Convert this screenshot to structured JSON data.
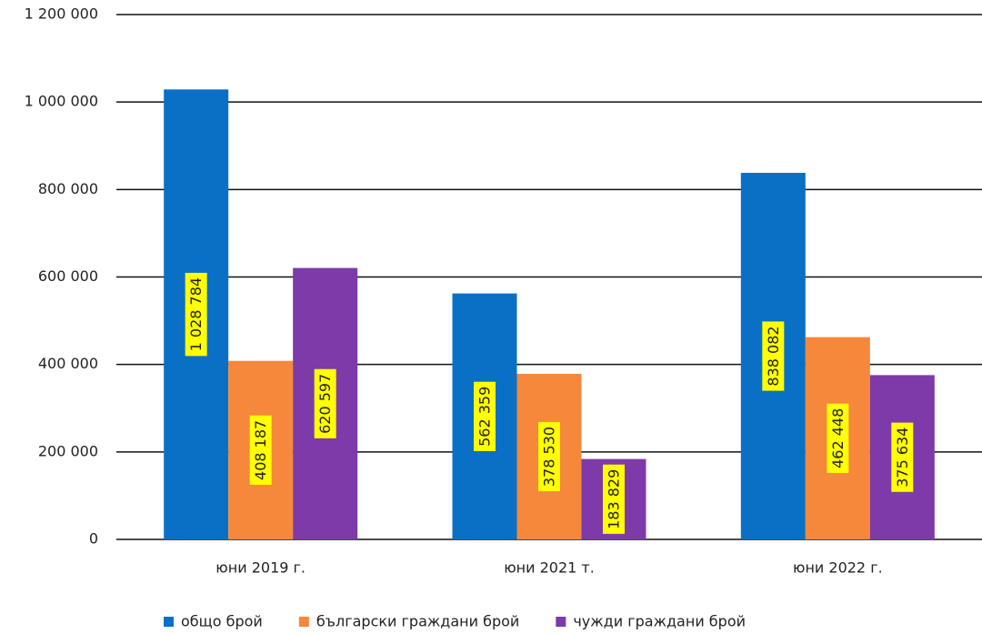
{
  "chart_data": {
    "type": "bar",
    "categories": [
      "юни 2019 г.",
      "юни 2021 т.",
      "юни 2022 г."
    ],
    "series": [
      {
        "name": "общо брой",
        "color": "#0a70c6",
        "values": [
          1028784,
          562359,
          838082
        ],
        "value_labels": [
          "1 028 784",
          "562 359",
          "838 082"
        ]
      },
      {
        "name": "български граждани брой",
        "color": "#f5883b",
        "values": [
          408187,
          378530,
          462448
        ],
        "value_labels": [
          "408 187",
          "378 530",
          "462 448"
        ]
      },
      {
        "name": "чужди граждани брой",
        "color": "#7d3aa8",
        "values": [
          620597,
          183829,
          375634
        ],
        "value_labels": [
          "620 597",
          "183 829",
          "375 634"
        ]
      }
    ],
    "ylim": [
      0,
      1200000
    ],
    "yticks": [
      0,
      {
        "value": 200000,
        "label": "200 000"
      },
      {
        "value": 400000,
        "label": "400 000"
      },
      {
        "value": 600000,
        "label": "600 000"
      },
      {
        "value": 800000,
        "label": "800 000"
      },
      {
        "value": 1000000,
        "label": "1 000 000"
      },
      {
        "value": 1200000,
        "label": "1 200 000"
      }
    ],
    "grid": true,
    "legend": "bottom"
  }
}
